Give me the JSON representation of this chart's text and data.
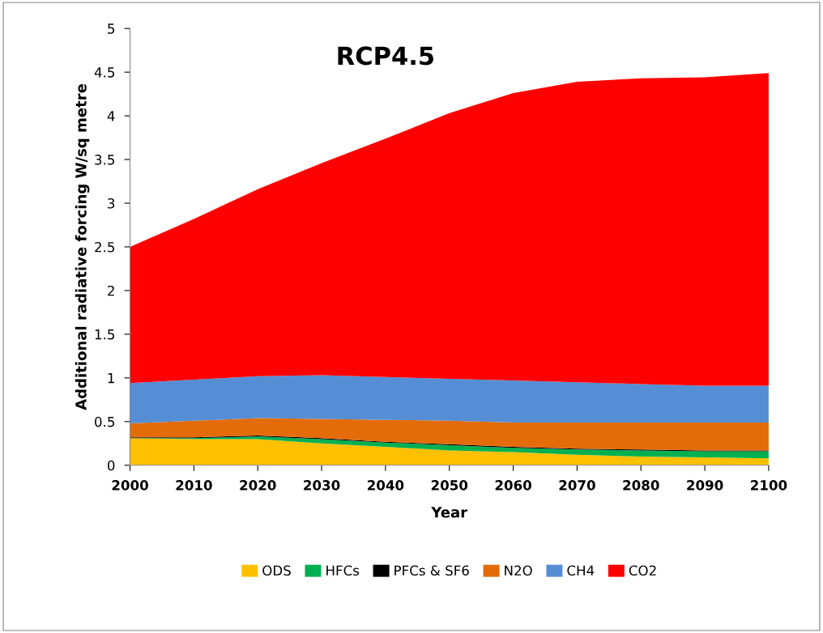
{
  "chart_data": {
    "type": "area",
    "stacked": true,
    "title": "RCP4.5",
    "xlabel": "Year",
    "ylabel": "Additional radiative forcing W/sq metre",
    "x": [
      2000,
      2010,
      2020,
      2030,
      2040,
      2050,
      2060,
      2070,
      2080,
      2090,
      2100
    ],
    "xlim": [
      2000,
      2100
    ],
    "xticks": [
      2000,
      2010,
      2020,
      2030,
      2040,
      2050,
      2060,
      2070,
      2080,
      2090,
      2100
    ],
    "ylim": [
      0,
      5
    ],
    "yticks": [
      0,
      0.5,
      1,
      1.5,
      2,
      2.5,
      3,
      3.5,
      4,
      4.5,
      5
    ],
    "grid": false,
    "legend": "bottom",
    "series": [
      {
        "name": "ODS",
        "color": "#ffc000",
        "values": [
          0.31,
          0.3,
          0.3,
          0.25,
          0.21,
          0.17,
          0.15,
          0.12,
          0.1,
          0.09,
          0.08
        ]
      },
      {
        "name": "HFCs",
        "color": "#00b050",
        "values": [
          0,
          0.01,
          0.03,
          0.05,
          0.05,
          0.06,
          0.05,
          0.06,
          0.07,
          0.07,
          0.08
        ]
      },
      {
        "name": "PFCs & SF6",
        "color": "#000000",
        "values": [
          0.01,
          0.01,
          0.01,
          0.01,
          0.01,
          0.01,
          0.01,
          0.01,
          0.01,
          0.01,
          0.01
        ]
      },
      {
        "name": "N2O",
        "color": "#e36c09",
        "values": [
          0.16,
          0.19,
          0.2,
          0.22,
          0.25,
          0.27,
          0.28,
          0.3,
          0.31,
          0.32,
          0.32
        ]
      },
      {
        "name": "CH4",
        "color": "#558ed5",
        "values": [
          0.46,
          0.47,
          0.48,
          0.5,
          0.49,
          0.48,
          0.48,
          0.46,
          0.44,
          0.42,
          0.42
        ]
      },
      {
        "name": "CO2",
        "color": "#ff0000",
        "values": [
          1.56,
          1.84,
          2.14,
          2.43,
          2.73,
          3.04,
          3.29,
          3.44,
          3.5,
          3.53,
          3.58
        ]
      }
    ]
  }
}
